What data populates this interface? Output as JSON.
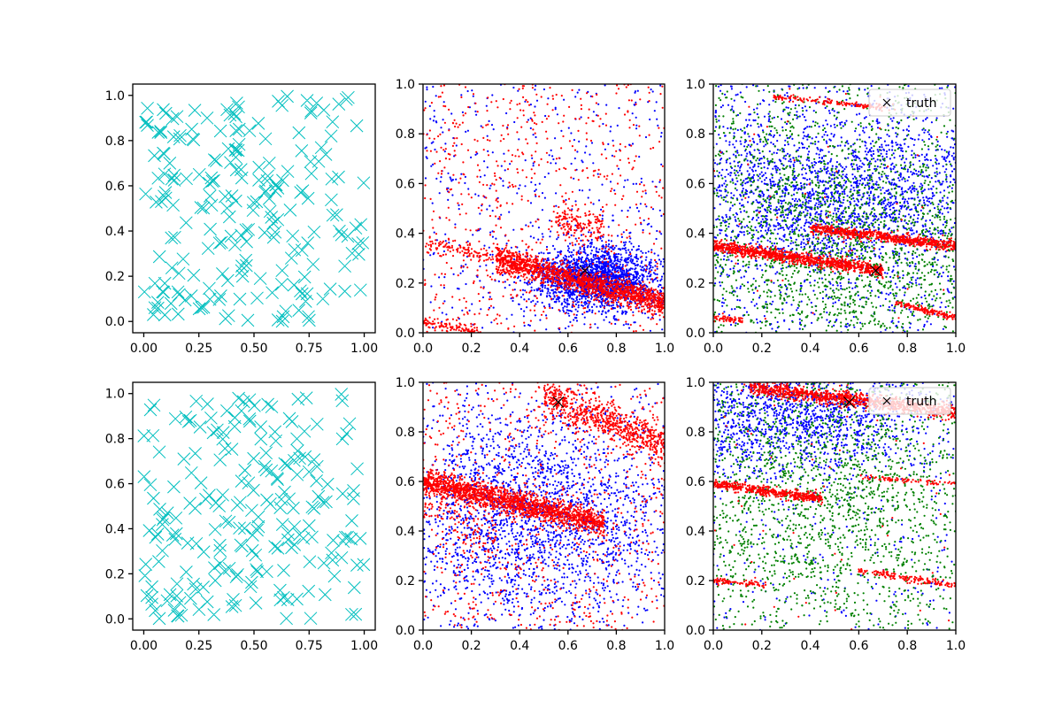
{
  "figure": {
    "background": "#ffffff"
  },
  "colors": {
    "cyan": "#00bfbf",
    "blue": "#0000ff",
    "red": "#ff0000",
    "green": "#008000",
    "black": "#000000"
  },
  "chart_data": [
    {
      "id": "top-left",
      "type": "scatter",
      "marker": "x",
      "color": "#00bfbf",
      "xlim": [
        -0.05,
        1.05
      ],
      "ylim": [
        -0.05,
        1.05
      ],
      "xticks": [
        "0.00",
        "0.25",
        "0.50",
        "0.75",
        "1.00"
      ],
      "yticks": [
        "0.0",
        "0.2",
        "0.4",
        "0.6",
        "0.8",
        "1.0"
      ],
      "n_points": 220,
      "seed": 11,
      "series": [
        {
          "name": "points",
          "distribution": "uniform"
        }
      ]
    },
    {
      "id": "top-middle",
      "type": "scatter",
      "marker": "dot",
      "xlim": [
        0,
        1
      ],
      "ylim": [
        0,
        1
      ],
      "xticks": [
        "0.0",
        "0.2",
        "0.4",
        "0.6",
        "0.8",
        "1.0"
      ],
      "yticks": [
        "0.0",
        "0.2",
        "0.4",
        "0.6",
        "0.8",
        "1.0"
      ],
      "truth": {
        "x": 0.67,
        "y": 0.25,
        "marker": "x"
      },
      "series": [
        {
          "name": "blue",
          "color": "#0000ff",
          "cloud": {
            "cx": 0.72,
            "cy": 0.22,
            "rx": 0.22,
            "ry": 0.11,
            "n": 2000
          },
          "background": 500,
          "seed": 21
        },
        {
          "name": "red",
          "color": "#ff0000",
          "bands": [
            {
              "x0": 0.3,
              "y0": 0.3,
              "x1": 1.0,
              "y1": 0.12,
              "width": 0.025,
              "n": 1500
            },
            {
              "x0": 0.0,
              "y0": 0.04,
              "x1": 0.25,
              "y1": 0.0,
              "width": 0.01,
              "n": 120
            },
            {
              "x0": 0.0,
              "y0": 0.36,
              "x1": 0.3,
              "y1": 0.3,
              "width": 0.015,
              "n": 100
            },
            {
              "x0": 0.55,
              "y0": 0.45,
              "x1": 0.75,
              "y1": 0.42,
              "width": 0.03,
              "n": 150
            }
          ],
          "background": 700,
          "seed": 22
        }
      ]
    },
    {
      "id": "top-right",
      "type": "scatter",
      "marker": "dot",
      "xlim": [
        0,
        1
      ],
      "ylim": [
        0,
        1
      ],
      "xticks": [
        "0.0",
        "0.2",
        "0.4",
        "0.6",
        "0.8",
        "1.0"
      ],
      "yticks": [
        "0.0",
        "0.2",
        "0.4",
        "0.6",
        "0.8",
        "1.0"
      ],
      "truth": {
        "x": 0.67,
        "y": 0.25,
        "marker": "x"
      },
      "legend": {
        "label": "truth",
        "location": "upper right"
      },
      "series": [
        {
          "name": "blue",
          "color": "#0000ff",
          "cloud": {
            "cx": 0.5,
            "cy": 0.55,
            "rx": 0.6,
            "ry": 0.25,
            "n": 1800
          },
          "background": 900,
          "seed": 31
        },
        {
          "name": "green",
          "color": "#008000",
          "cloud": {
            "cx": 0.55,
            "cy": 0.35,
            "rx": 0.55,
            "ry": 0.35,
            "n": 1300
          },
          "background": 900,
          "seed": 32
        },
        {
          "name": "red",
          "color": "#ff0000",
          "bands": [
            {
              "x0": 0.0,
              "y0": 0.35,
              "x1": 0.7,
              "y1": 0.25,
              "width": 0.012,
              "n": 1000
            },
            {
              "x0": 0.4,
              "y0": 0.42,
              "x1": 1.0,
              "y1": 0.35,
              "width": 0.01,
              "n": 700
            },
            {
              "x0": 0.25,
              "y0": 0.95,
              "x1": 0.75,
              "y1": 0.9,
              "width": 0.006,
              "n": 150
            },
            {
              "x0": 0.0,
              "y0": 0.06,
              "x1": 0.12,
              "y1": 0.05,
              "width": 0.006,
              "n": 60
            },
            {
              "x0": 0.75,
              "y0": 0.12,
              "x1": 1.0,
              "y1": 0.06,
              "width": 0.006,
              "n": 150
            }
          ],
          "background": 60,
          "seed": 33
        }
      ]
    },
    {
      "id": "bottom-left",
      "type": "scatter",
      "marker": "x",
      "color": "#00bfbf",
      "xlim": [
        -0.05,
        1.05
      ],
      "ylim": [
        -0.05,
        1.05
      ],
      "xticks": [
        "0.00",
        "0.25",
        "0.50",
        "0.75",
        "1.00"
      ],
      "yticks": [
        "0.0",
        "0.2",
        "0.4",
        "0.6",
        "0.8",
        "1.0"
      ],
      "n_points": 220,
      "seed": 12,
      "series": [
        {
          "name": "points",
          "distribution": "uniform"
        }
      ]
    },
    {
      "id": "bottom-middle",
      "type": "scatter",
      "marker": "dot",
      "xlim": [
        0,
        1
      ],
      "ylim": [
        0,
        1
      ],
      "xticks": [
        "0.0",
        "0.2",
        "0.4",
        "0.6",
        "0.8",
        "1.0"
      ],
      "yticks": [
        "0.0",
        "0.2",
        "0.4",
        "0.6",
        "0.8",
        "1.0"
      ],
      "truth": {
        "x": 0.56,
        "y": 0.92,
        "marker": "x"
      },
      "series": [
        {
          "name": "blue",
          "color": "#0000ff",
          "cloud": {
            "cx": 0.45,
            "cy": 0.45,
            "rx": 0.5,
            "ry": 0.35,
            "n": 2200
          },
          "background": 400,
          "seed": 41
        },
        {
          "name": "red",
          "color": "#ff0000",
          "bands": [
            {
              "x0": 0.0,
              "y0": 0.6,
              "x1": 0.75,
              "y1": 0.43,
              "width": 0.025,
              "n": 1700
            },
            {
              "x0": 0.5,
              "y0": 0.95,
              "x1": 1.0,
              "y1": 0.75,
              "width": 0.04,
              "n": 700
            },
            {
              "x0": 0.0,
              "y0": 0.5,
              "x1": 0.3,
              "y1": 0.35,
              "width": 0.04,
              "n": 100
            }
          ],
          "background": 700,
          "seed": 42
        }
      ]
    },
    {
      "id": "bottom-right",
      "type": "scatter",
      "marker": "dot",
      "xlim": [
        0,
        1
      ],
      "ylim": [
        0,
        1
      ],
      "xticks": [
        "0.0",
        "0.2",
        "0.4",
        "0.6",
        "0.8",
        "1.0"
      ],
      "yticks": [
        "0.0",
        "0.2",
        "0.4",
        "0.6",
        "0.8",
        "1.0"
      ],
      "truth": {
        "x": 0.56,
        "y": 0.92,
        "marker": "x"
      },
      "legend": {
        "label": "truth",
        "location": "upper right"
      },
      "series": [
        {
          "name": "blue",
          "color": "#0000ff",
          "cloud": {
            "cx": 0.3,
            "cy": 0.85,
            "rx": 0.5,
            "ry": 0.2,
            "n": 1600
          },
          "background": 300,
          "seed": 51
        },
        {
          "name": "green",
          "color": "#008000",
          "cloud": {
            "cx": 0.45,
            "cy": 0.55,
            "rx": 0.6,
            "ry": 0.45,
            "n": 1400
          },
          "background": 700,
          "seed": 52
        },
        {
          "name": "red",
          "color": "#ff0000",
          "bands": [
            {
              "x0": 0.15,
              "y0": 0.98,
              "x1": 1.0,
              "y1": 0.88,
              "width": 0.015,
              "n": 1000
            },
            {
              "x0": 0.0,
              "y0": 0.59,
              "x1": 0.45,
              "y1": 0.53,
              "width": 0.01,
              "n": 450
            },
            {
              "x0": 0.6,
              "y0": 0.62,
              "x1": 1.0,
              "y1": 0.59,
              "width": 0.005,
              "n": 80
            },
            {
              "x0": 0.0,
              "y0": 0.2,
              "x1": 0.22,
              "y1": 0.18,
              "width": 0.006,
              "n": 80
            },
            {
              "x0": 0.6,
              "y0": 0.24,
              "x1": 1.0,
              "y1": 0.18,
              "width": 0.006,
              "n": 150
            }
          ],
          "background": 60,
          "seed": 53
        }
      ]
    }
  ]
}
